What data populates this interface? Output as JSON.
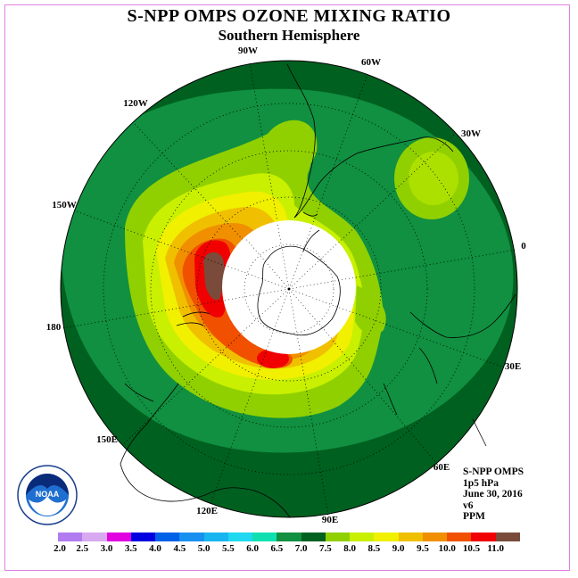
{
  "title": "S-NPP OMPS OZONE MIXING RATIO",
  "subtitle": "Southern Hemisphere",
  "longitude_labels": {
    "w90": "90W",
    "w60": "60W",
    "w30": "30W",
    "e0": "0",
    "e30": "30E",
    "e60": "60E",
    "e90": "90E",
    "e120": "120E",
    "e150": "150E",
    "e180": "180",
    "w150": "150W",
    "w120": "120W"
  },
  "info": {
    "instrument": "S-NPP OMPS",
    "level": "1p5 hPa",
    "date": "June 30, 2016",
    "version": "v6",
    "units": "PPM"
  },
  "logo_text": "NOAA",
  "colorbar": {
    "ticks": [
      "2.0",
      "2.5",
      "3.0",
      "3.5",
      "4.0",
      "4.5",
      "5.0",
      "5.5",
      "6.0",
      "6.5",
      "7.0",
      "7.5",
      "8.0",
      "8.5",
      "9.0",
      "9.5",
      "10.0",
      "10.5",
      "11.0"
    ],
    "colors": [
      "#b07cf0",
      "#d8a8f0",
      "#e000e0",
      "#0000e0",
      "#0060e8",
      "#1890f0",
      "#18b4f0",
      "#20d8f0",
      "#10e0b0",
      "#109040",
      "#006020",
      "#90d000",
      "#c8f000",
      "#f0f000",
      "#f0c000",
      "#f09000",
      "#f05000",
      "#f00000",
      "#7a4b3a"
    ]
  }
}
